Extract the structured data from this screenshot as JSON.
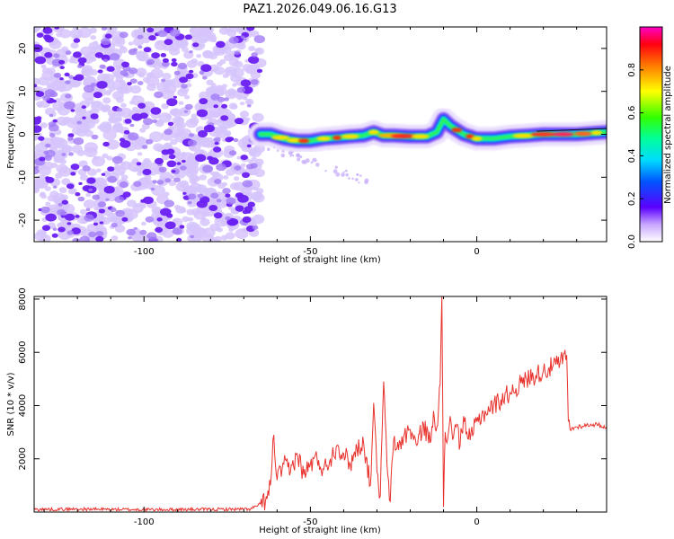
{
  "title": "PAZ1.2026.049.06.16.G13",
  "colors": {
    "snr_line": "#e8322d",
    "speckle_dark": "#6a1ff2",
    "speckle_light": "#d6c4fb"
  },
  "chart_data": [
    {
      "type": "heatmap",
      "name": "spectrogram",
      "xlabel": "Height of straight line (km)",
      "ylabel": "Frequency (Hz)",
      "xlim": [
        -133,
        39
      ],
      "ylim": [
        -25,
        25
      ],
      "x_ticks": [
        -100,
        -50,
        0
      ],
      "y_ticks": [
        -20,
        -10,
        0,
        10,
        20
      ],
      "noise_region_x": [
        -133,
        -65
      ],
      "signal_ridge": {
        "x": [
          -65,
          -62,
          -58,
          -54,
          -50,
          -46,
          -42,
          -38,
          -34,
          -31,
          -28,
          -25,
          -20,
          -15,
          -12,
          -10,
          -8,
          -6,
          -4,
          -2,
          0,
          5,
          10,
          15,
          20,
          25,
          30,
          35,
          39
        ],
        "y": [
          0,
          0,
          -1,
          -1.5,
          -1.5,
          -1,
          -0.8,
          -0.5,
          -0.3,
          0.5,
          -0.3,
          -0.3,
          -0.5,
          -0.5,
          0.5,
          3.5,
          2,
          1,
          0,
          -0.5,
          -1,
          -1,
          -0.5,
          -0.3,
          0,
          0,
          0,
          0.3,
          0.5
        ]
      },
      "colorbar": {
        "label": "Normalized spectral amplitude",
        "ticks": [
          0.0,
          0.2,
          0.4,
          0.6,
          0.8
        ],
        "tick_labels": [
          "0.0",
          "0.2",
          "0.4",
          "0.6",
          "0.8"
        ],
        "range": [
          0,
          1
        ]
      }
    },
    {
      "type": "line",
      "name": "snr",
      "xlabel": "Height of straight line (km)",
      "ylabel": "SNR (10 * v/v)",
      "xlim": [
        -133,
        39
      ],
      "ylim": [
        0,
        8100
      ],
      "x_ticks": [
        -100,
        -50,
        0
      ],
      "y_ticks": [
        2000,
        4000,
        6000,
        8000
      ],
      "series": [
        {
          "name": "SNR",
          "x": [
            -133,
            -120,
            -100,
            -80,
            -68,
            -65,
            -63,
            -62,
            -61,
            -60,
            -58,
            -56,
            -54,
            -52,
            -50,
            -48,
            -46,
            -44,
            -42,
            -40,
            -38,
            -36,
            -34,
            -32,
            -31,
            -30,
            -29,
            -28,
            -27,
            -26,
            -25,
            -24,
            -22,
            -20,
            -18,
            -16,
            -14,
            -13,
            -12,
            -11,
            -10.5,
            -10,
            -9.5,
            -9,
            -8,
            -7,
            -6,
            -5,
            -4,
            -3,
            -2,
            0,
            2,
            5,
            10,
            15,
            20,
            25,
            27,
            27.5,
            28,
            30,
            35,
            39
          ],
          "y": [
            100,
            110,
            90,
            100,
            110,
            300,
            500,
            1000,
            2900,
            1200,
            1800,
            1500,
            2200,
            1400,
            1800,
            2000,
            1600,
            2000,
            2500,
            2200,
            1800,
            2400,
            2600,
            1000,
            4100,
            1500,
            600,
            4900,
            1800,
            400,
            2700,
            2400,
            2800,
            3100,
            2500,
            3300,
            2600,
            3800,
            3200,
            4800,
            8100,
            200,
            3000,
            2600,
            3600,
            2800,
            3300,
            2500,
            3600,
            3000,
            2700,
            3400,
            3700,
            4000,
            4500,
            5000,
            5300,
            5600,
            5900,
            3400,
            3100,
            3200,
            3300,
            3200
          ]
        }
      ]
    }
  ]
}
